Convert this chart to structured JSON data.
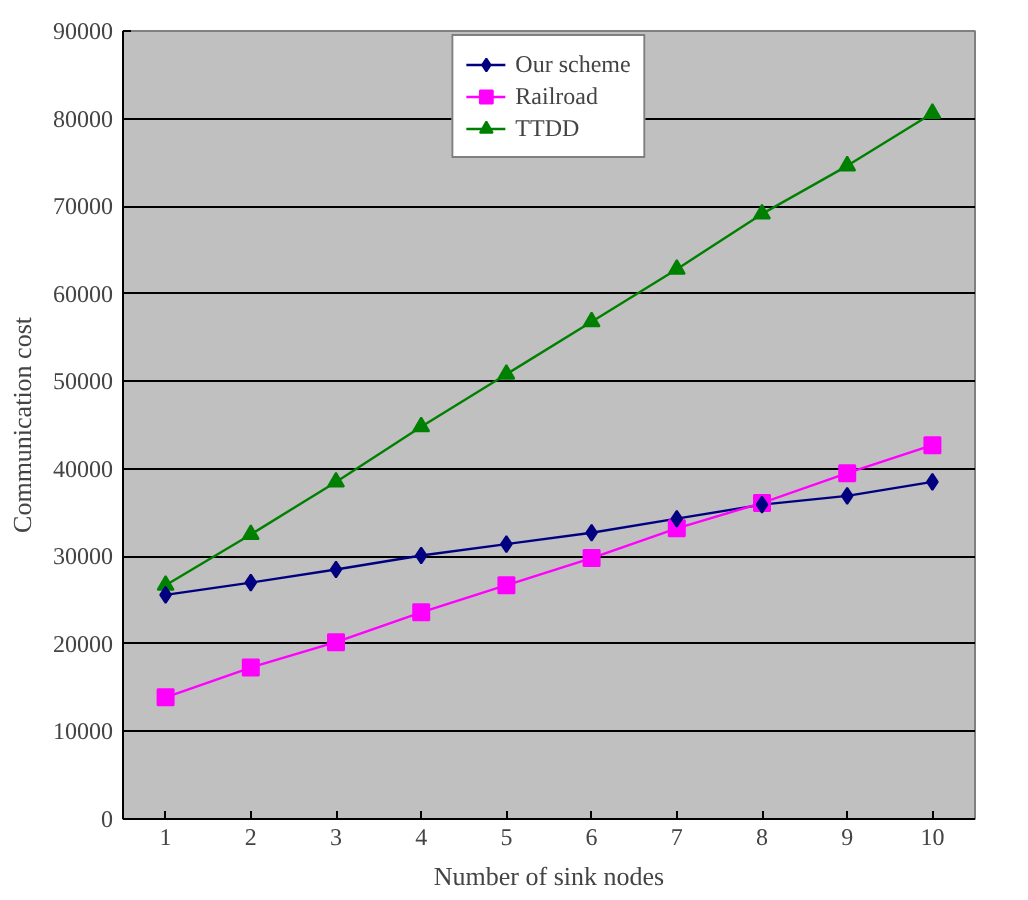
{
  "chart_data": {
    "type": "line",
    "xlabel": "Number of sink nodes",
    "ylabel": "Communication cost",
    "categories": [
      "1",
      "2",
      "3",
      "4",
      "5",
      "6",
      "7",
      "8",
      "9",
      "10"
    ],
    "series": [
      {
        "name": "Our scheme",
        "color": "#000080",
        "marker": "diamond",
        "values": [
          25600,
          27000,
          28500,
          30100,
          31400,
          32700,
          34300,
          35900,
          36900,
          38500
        ]
      },
      {
        "name": "Railroad",
        "color": "#ff00ff",
        "marker": "square",
        "values": [
          13900,
          17300,
          20200,
          23600,
          26700,
          29800,
          33200,
          36100,
          39500,
          42700
        ]
      },
      {
        "name": "TTDD",
        "color": "#008000",
        "marker": "triangle",
        "values": [
          26700,
          32500,
          38500,
          44800,
          50800,
          56800,
          62800,
          69100,
          74600,
          80600
        ]
      }
    ],
    "ylim": [
      0,
      90000
    ],
    "yticks": [
      0,
      10000,
      20000,
      30000,
      40000,
      50000,
      60000,
      70000,
      80000,
      90000
    ],
    "grid": "y",
    "legend": "top",
    "line_style": "solid"
  }
}
